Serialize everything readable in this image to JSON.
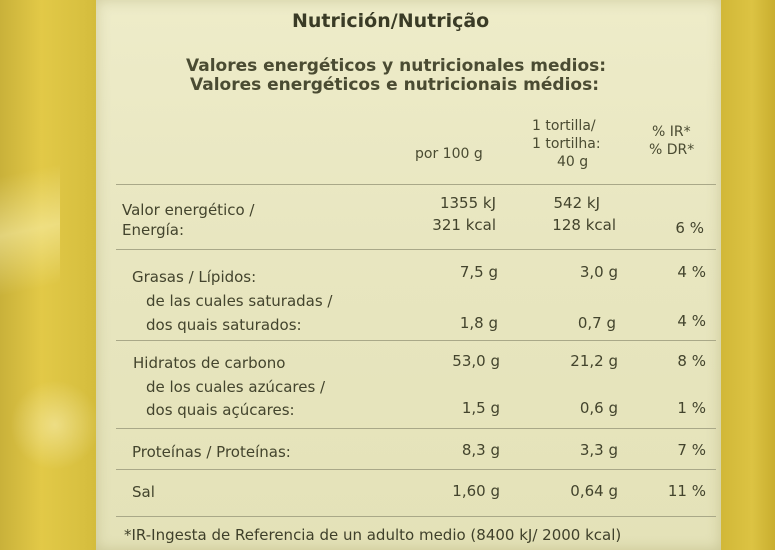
{
  "title": "Nutrición/Nutrição",
  "subtitle_es": "Valores energéticos y nutricionales medios:",
  "subtitle_pt": "Valores energéticos e nutricionais médios:",
  "headers": {
    "per100": "por 100 g",
    "portion_1": "1 tortilla/",
    "portion_2": "1 tortilha:",
    "portion_3": "40 g",
    "ir_1": "% IR*",
    "ir_2": "% DR*"
  },
  "rows": [
    {
      "label_1": "Valor energético /",
      "label_2": "Energía:",
      "per100_1": "1355 kJ",
      "per100_2": "321 kcal",
      "portion_1": "542 kJ",
      "portion_2": "128 kcal",
      "ir": "6 %"
    },
    {
      "label_1": "Grasas / Lípidos:",
      "per100": "7,5 g",
      "portion": "3,0 g",
      "ir": "4 %"
    },
    {
      "label_1": "de las cuales saturadas /",
      "label_2": "dos quais saturados:",
      "per100": "1,8 g",
      "portion": "0,7 g",
      "ir": "4 %"
    },
    {
      "label_1": "Hidratos de carbono",
      "per100": "53,0 g",
      "portion": "21,2 g",
      "ir": "8 %"
    },
    {
      "label_1": "de los cuales azúcares /",
      "label_2": "dos quais açúcares:",
      "per100": "1,5 g",
      "portion": "0,6 g",
      "ir": "1 %"
    },
    {
      "label_1": "Proteínas / Proteínas:",
      "per100": "8,3 g",
      "portion": "3,3 g",
      "ir": "7 %"
    },
    {
      "label_1": "Sal",
      "per100": "1,60 g",
      "portion": "0,64 g",
      "ir": "11 %"
    }
  ],
  "footnote": "*IR-Ingesta de Referencia de un adulto medio (8400 kJ/ 2000 kcal)"
}
